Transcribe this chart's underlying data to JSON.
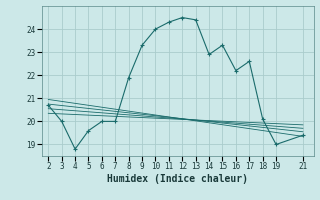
{
  "xlabel": "Humidex (Indice chaleur)",
  "bg_color": "#cce8e8",
  "grid_color": "#aacccc",
  "line_color": "#1a6b6b",
  "x_main": [
    2,
    3,
    4,
    5,
    6,
    7,
    8,
    9,
    10,
    11,
    12,
    13,
    14,
    15,
    16,
    17,
    18,
    19,
    21
  ],
  "y_main": [
    20.7,
    20.0,
    18.8,
    19.6,
    20.0,
    20.0,
    21.9,
    23.3,
    24.0,
    24.3,
    24.5,
    24.4,
    22.9,
    23.3,
    22.2,
    22.6,
    20.1,
    19.0,
    19.4
  ],
  "reg_lines": [
    {
      "x": [
        2,
        21
      ],
      "y": [
        20.95,
        19.35
      ]
    },
    {
      "x": [
        2,
        21
      ],
      "y": [
        20.75,
        19.55
      ]
    },
    {
      "x": [
        2,
        21
      ],
      "y": [
        20.55,
        19.7
      ]
    },
    {
      "x": [
        2,
        21
      ],
      "y": [
        20.35,
        19.85
      ]
    }
  ],
  "xlim": [
    1.5,
    21.8
  ],
  "ylim": [
    18.5,
    25.0
  ],
  "yticks": [
    19,
    20,
    21,
    22,
    23,
    24
  ],
  "xticks": [
    2,
    3,
    4,
    5,
    6,
    7,
    8,
    9,
    10,
    11,
    12,
    13,
    14,
    15,
    16,
    17,
    18,
    19,
    21
  ],
  "tick_fontsize": 5.5,
  "xlabel_fontsize": 7.0
}
